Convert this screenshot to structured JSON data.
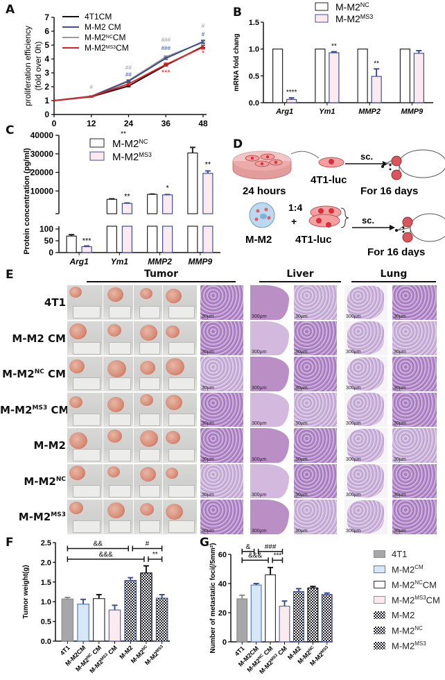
{
  "figure": {
    "panels": [
      "A",
      "B",
      "C",
      "D",
      "E",
      "F",
      "G"
    ]
  },
  "panelA": {
    "letter": "A",
    "ylabel_line1": "proliferation efficiency",
    "ylabel_line2": "(fold over 0h)",
    "xlabel_stray": "**",
    "legend": [
      {
        "label": "4T1CM",
        "sup": "",
        "suffix": "",
        "color": "#111111"
      },
      {
        "label": "M-M2 CM",
        "sup": "",
        "suffix": "",
        "color": "#3a4f8c"
      },
      {
        "label": "M-M2",
        "sup": "NC",
        "suffix": "CM",
        "color": "#9a9a9a"
      },
      {
        "label": "M-M2",
        "sup": "MS3",
        "suffix": "CM",
        "color": "#e02020"
      }
    ],
    "annotations": [
      {
        "x": 12,
        "text": "#",
        "color": "#9a9a9a"
      },
      {
        "x": 24,
        "text": "##",
        "color": "#9a9a9a"
      },
      {
        "x": 24,
        "text": "##",
        "color": "#3a4f8c"
      },
      {
        "x": 36,
        "text": "###",
        "color": "#9a9a9a"
      },
      {
        "x": 36,
        "text": "###",
        "color": "#3a4f8c"
      },
      {
        "x": 36,
        "text": "***",
        "color": "#e02020"
      },
      {
        "x": 48,
        "text": "#",
        "color": "#9a9a9a"
      },
      {
        "x": 48,
        "text": "#",
        "color": "#3a4f8c"
      },
      {
        "x": 48,
        "text": "*",
        "color": "#e02020"
      }
    ]
  },
  "panelB": {
    "letter": "B",
    "ylabel": "mRNA fold chang",
    "legend": [
      {
        "label": "M-M2",
        "sup": "NC"
      },
      {
        "label": "M-M2",
        "sup": "MS3"
      }
    ],
    "annotations": [
      "****",
      "**",
      "**",
      ""
    ]
  },
  "panelC": {
    "letter": "C",
    "ylabel": "Protein concentration (pg/ml)",
    "legend": [
      {
        "label": "M-M2",
        "sup": "NC"
      },
      {
        "label": "M-M2",
        "sup": "MS3"
      }
    ],
    "annotations": [
      "***",
      "**",
      "*",
      "**"
    ]
  },
  "panelD": {
    "letter": "D",
    "row1": {
      "left_caption": "24 hours",
      "cell_caption": "4T1-luc",
      "arrow_label": "sc.",
      "right_caption": "For 16 days"
    },
    "row2": {
      "left_caption": "M-M2",
      "ratio": "1:4",
      "plus": "+",
      "cell_caption": "4T1-luc",
      "arrow_label": "sc.",
      "right_caption": "For 16 days"
    }
  },
  "panelE": {
    "letter": "E",
    "sections": [
      "Tumor",
      "Liver",
      "Lung"
    ],
    "rows": [
      {
        "label": "4T1",
        "sup": "",
        "suffix": ""
      },
      {
        "label": "M-M2 CM",
        "sup": "",
        "suffix": ""
      },
      {
        "label": "M-M2",
        "sup": "NC",
        "suffix": " CM"
      },
      {
        "label": "M-M2",
        "sup": "MS3",
        "suffix": " CM"
      },
      {
        "label": "M-M2",
        "sup": "",
        "suffix": ""
      },
      {
        "label": "M-M2",
        "sup": "NC",
        "suffix": ""
      },
      {
        "label": "M-M2",
        "sup": "MS3",
        "suffix": ""
      }
    ],
    "scale_bars": {
      "tumor_he": "30µm",
      "liver_low": "300µm",
      "liver_high": "30µm",
      "lung_low": "300µm",
      "lung_high": "30µm"
    }
  },
  "panelF": {
    "letter": "F",
    "ylabel": "Tumor weight(g)",
    "brackets": [
      {
        "from": 0,
        "to": 4,
        "label": "&&",
        "level": 2.35
      },
      {
        "from": 4,
        "to": 6,
        "label": "#",
        "level": 2.35
      },
      {
        "from": 0,
        "to": 5,
        "label": "&&&",
        "level": 2.08
      },
      {
        "from": 5,
        "to": 6,
        "label": "**",
        "level": 2.08
      }
    ]
  },
  "panelG": {
    "letter": "G",
    "ylabel": "Number of metastatic foci(/5mm²)",
    "brackets": [
      {
        "from": 0,
        "to": 1,
        "label": "&",
        "level": 62
      },
      {
        "from": 1,
        "to": 3,
        "label": "###",
        "level": 62
      },
      {
        "from": 0,
        "to": 2,
        "label": "&&&",
        "level": 56
      },
      {
        "from": 2,
        "to": 3,
        "label": "***",
        "level": 56
      }
    ]
  },
  "legendFG": [
    {
      "label": "4T1",
      "sup": "",
      "suffix": "",
      "style": "gray"
    },
    {
      "label": "M-M2",
      "sup": "CM",
      "suffix": "",
      "style": "lightblue"
    },
    {
      "label": "M-M2",
      "sup": "NC",
      "suffix": "CM",
      "style": "white"
    },
    {
      "label": "M-M2",
      "sup": "MS3",
      "suffix": "CM",
      "style": "pink"
    },
    {
      "label": "M-M2",
      "sup": "",
      "suffix": "",
      "style": "checker"
    },
    {
      "label": "M-M2",
      "sup": "NC",
      "suffix": "",
      "style": "checker"
    },
    {
      "label": "M-M2",
      "sup": "MS3",
      "suffix": "",
      "style": "checker"
    }
  ],
  "chart_data": [
    {
      "id": "A",
      "type": "line",
      "title": "",
      "xlabel": "",
      "ylabel": "proliferation efficiency (fold over 0h)",
      "x": [
        0,
        12,
        24,
        36,
        48
      ],
      "xticks": [
        "0",
        "12",
        "24",
        "36",
        "48"
      ],
      "yticks": [
        "0",
        "1",
        "2",
        "3",
        "4",
        "5",
        "6",
        "7"
      ],
      "ylim": [
        0,
        7
      ],
      "grid": false,
      "legend_position": "top-left",
      "series": [
        {
          "name": "4T1CM",
          "color": "#111111",
          "values": [
            1.0,
            1.28,
            2.05,
            3.55,
            4.9
          ]
        },
        {
          "name": "M-M2 CM",
          "color": "#3a4f8c",
          "values": [
            1.0,
            1.3,
            2.4,
            4.05,
            5.25
          ]
        },
        {
          "name": "M-M2NCCM",
          "color": "#9a9a9a",
          "values": [
            1.0,
            1.32,
            2.45,
            4.15,
            5.2
          ]
        },
        {
          "name": "M-M2MS3CM",
          "color": "#e02020",
          "values": [
            1.0,
            1.3,
            2.2,
            3.6,
            4.85
          ]
        }
      ],
      "errors": [
        [
          0,
          0.03,
          0.05,
          0.06,
          0.08
        ],
        [
          0,
          0.03,
          0.06,
          0.08,
          0.1
        ],
        [
          0,
          0.03,
          0.06,
          0.08,
          0.1
        ],
        [
          0,
          0.03,
          0.08,
          0.1,
          0.12
        ]
      ]
    },
    {
      "id": "B",
      "type": "bar",
      "title": "",
      "xlabel": "",
      "ylabel": "mRNA fold chang",
      "categories": [
        "Arg1",
        "Ym1",
        "MMP2",
        "MMP9"
      ],
      "yticks": [
        "0.0",
        "0.5",
        "1.0",
        "1.5"
      ],
      "ylim": [
        0,
        1.5
      ],
      "grid": false,
      "legend_position": "top",
      "series": [
        {
          "name": "M-M2NC",
          "values": [
            1.0,
            1.0,
            1.0,
            1.0
          ],
          "errors": [
            0,
            0,
            0,
            0
          ]
        },
        {
          "name": "M-M2MS3",
          "values": [
            0.06,
            0.93,
            0.49,
            0.92
          ],
          "errors": [
            0.03,
            0.02,
            0.14,
            0.05
          ]
        }
      ],
      "significance": [
        "****",
        "**",
        "**",
        ""
      ]
    },
    {
      "id": "C",
      "type": "bar",
      "title": "",
      "xlabel": "",
      "ylabel": "Protein concentration (pg/ml)",
      "categories": [
        "Arg1",
        "Ym1",
        "MMP2",
        "MMP9"
      ],
      "yticks": [
        "0",
        "50",
        "100",
        "10000",
        "20000",
        "30000",
        "40000"
      ],
      "ylim": [
        0,
        40000
      ],
      "axis_break": {
        "lower": [
          0,
          100
        ],
        "upper": [
          100,
          40000
        ]
      },
      "grid": false,
      "legend_position": "top",
      "series": [
        {
          "name": "M-M2NC",
          "values": [
            70,
            5500,
            8200,
            30500
          ],
          "errors": [
            6,
            300,
            150,
            3000
          ]
        },
        {
          "name": "M-M2MS3",
          "values": [
            25,
            3300,
            7900,
            19500
          ],
          "errors": [
            3,
            250,
            200,
            1300
          ]
        }
      ],
      "significance": [
        "***",
        "**",
        "*",
        "**"
      ]
    },
    {
      "id": "F",
      "type": "bar",
      "title": "",
      "xlabel": "",
      "ylabel": "Tumor weight(g)",
      "categories": [
        "4T1",
        "M-M2CM",
        "M-M2NC CM",
        "M-M2MS3 CM",
        "M-M2",
        "M-M2NC",
        "M-M2MS3"
      ],
      "yticks": [
        "0.0",
        "0.5",
        "1.0",
        "1.5",
        "2.0",
        "2.5"
      ],
      "ylim": [
        0,
        2.5
      ],
      "grid": false,
      "values": [
        1.07,
        0.94,
        1.08,
        0.79,
        1.54,
        1.73,
        1.09
      ],
      "errors": [
        0.04,
        0.12,
        0.1,
        0.12,
        0.07,
        0.18,
        0.09
      ],
      "significance_brackets": [
        {
          "groups": [
            "4T1",
            "M-M2"
          ],
          "label": "&&"
        },
        {
          "groups": [
            "M-M2",
            "M-M2MS3"
          ],
          "label": "#"
        },
        {
          "groups": [
            "4T1",
            "M-M2NC"
          ],
          "label": "&&&"
        },
        {
          "groups": [
            "M-M2NC",
            "M-M2MS3"
          ],
          "label": "**"
        }
      ]
    },
    {
      "id": "G",
      "type": "bar",
      "title": "",
      "xlabel": "",
      "ylabel": "Number of metastatic foci(/5mm²)",
      "categories": [
        "4T1",
        "M-M2CM",
        "M-M2NC CM",
        "M-M2MS3 CM",
        "M-M2",
        "M-M2NC",
        "M-M2MS3"
      ],
      "yticks": [
        "0",
        "20",
        "40",
        "60"
      ],
      "ylim": [
        0,
        60
      ],
      "grid": false,
      "values": [
        29.5,
        39,
        46,
        24.5,
        34.5,
        37,
        32.5
      ],
      "errors": [
        2.5,
        1,
        5,
        3.5,
        2,
        1,
        1
      ],
      "significance_brackets": [
        {
          "groups": [
            "4T1",
            "M-M2CM"
          ],
          "label": "&"
        },
        {
          "groups": [
            "M-M2CM",
            "M-M2MS3 CM"
          ],
          "label": "###"
        },
        {
          "groups": [
            "4T1",
            "M-M2NC CM"
          ],
          "label": "&&&"
        },
        {
          "groups": [
            "M-M2NC CM",
            "M-M2MS3 CM"
          ],
          "label": "***"
        }
      ],
      "legend_position": "right"
    }
  ]
}
